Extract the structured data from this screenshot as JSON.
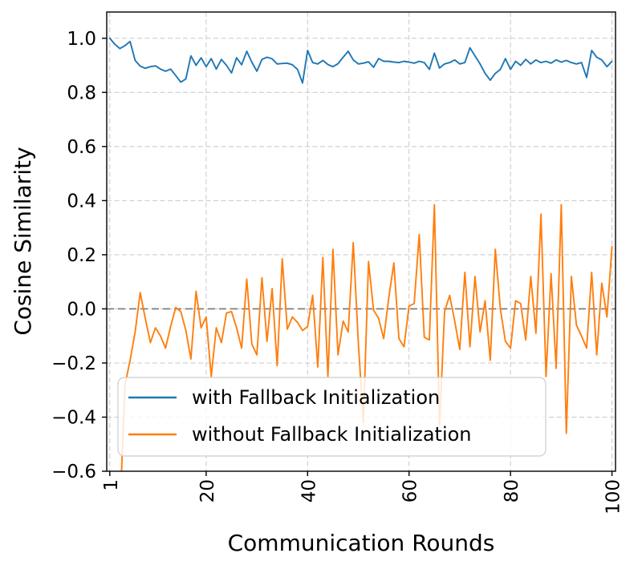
{
  "chart_data": {
    "type": "line",
    "title": "",
    "xlabel": "Communication Rounds",
    "ylabel": "Cosine Similarity",
    "xlim": [
      0.4,
      100.7
    ],
    "ylim": [
      -0.6,
      1.097
    ],
    "grid": true,
    "grid_color": "#c8c8c8",
    "text_color": "#000000",
    "x_ticks": [
      1,
      20,
      40,
      60,
      80,
      100
    ],
    "x_tick_labels": [
      "1",
      "20",
      "40",
      "60",
      "80",
      "100"
    ],
    "y_ticks": [
      1.0,
      0.8,
      0.6,
      0.4,
      0.2,
      0.0,
      -0.2,
      -0.4,
      -0.6
    ],
    "y_tick_labels": [
      "1.0",
      "0.8",
      "0.6",
      "0.4",
      "0.2",
      "0.0",
      "−0.2",
      "−0.4",
      "−0.6"
    ],
    "zero_line": {
      "y": 0.0,
      "color": "#7f7f7f",
      "style": "dashed"
    },
    "legend": {
      "position": "lower left"
    },
    "x": [
      1,
      2,
      3,
      4,
      5,
      6,
      7,
      8,
      9,
      10,
      11,
      12,
      13,
      14,
      15,
      16,
      17,
      18,
      19,
      20,
      21,
      22,
      23,
      24,
      25,
      26,
      27,
      28,
      29,
      30,
      31,
      32,
      33,
      34,
      35,
      36,
      37,
      38,
      39,
      40,
      41,
      42,
      43,
      44,
      45,
      46,
      47,
      48,
      49,
      50,
      51,
      52,
      53,
      54,
      55,
      56,
      57,
      58,
      59,
      60,
      61,
      62,
      63,
      64,
      65,
      66,
      67,
      68,
      69,
      70,
      71,
      72,
      73,
      74,
      75,
      76,
      77,
      78,
      79,
      80,
      81,
      82,
      83,
      84,
      85,
      86,
      87,
      88,
      89,
      90,
      91,
      92,
      93,
      94,
      95,
      96,
      97,
      98,
      99,
      100
    ],
    "series": [
      {
        "name": "with Fallback Initialization",
        "color": "#1f77b4",
        "values": [
          1.0,
          0.978,
          0.962,
          0.973,
          0.988,
          0.918,
          0.897,
          0.889,
          0.895,
          0.898,
          0.886,
          0.878,
          0.886,
          0.862,
          0.838,
          0.85,
          0.935,
          0.9,
          0.928,
          0.895,
          0.925,
          0.886,
          0.922,
          0.9,
          0.872,
          0.928,
          0.902,
          0.952,
          0.912,
          0.878,
          0.922,
          0.93,
          0.924,
          0.905,
          0.907,
          0.908,
          0.902,
          0.885,
          0.835,
          0.955,
          0.91,
          0.905,
          0.918,
          0.903,
          0.895,
          0.906,
          0.93,
          0.952,
          0.92,
          0.905,
          0.908,
          0.913,
          0.893,
          0.925,
          0.915,
          0.915,
          0.912,
          0.91,
          0.915,
          0.912,
          0.908,
          0.915,
          0.91,
          0.885,
          0.945,
          0.89,
          0.905,
          0.91,
          0.92,
          0.905,
          0.91,
          0.965,
          0.935,
          0.905,
          0.87,
          0.845,
          0.87,
          0.885,
          0.925,
          0.885,
          0.915,
          0.9,
          0.922,
          0.905,
          0.92,
          0.91,
          0.915,
          0.908,
          0.92,
          0.912,
          0.918,
          0.91,
          0.905,
          0.91,
          0.855,
          0.955,
          0.93,
          0.92,
          0.895,
          0.915
        ]
      },
      {
        "name": "without Fallback Initialization",
        "color": "#ff7f0e",
        "values": [
          -0.9,
          -0.82,
          -0.75,
          -0.28,
          -0.19,
          -0.085,
          0.06,
          -0.035,
          -0.125,
          -0.07,
          -0.1,
          -0.145,
          -0.065,
          0.005,
          -0.01,
          -0.08,
          -0.185,
          0.065,
          -0.07,
          -0.03,
          -0.25,
          -0.07,
          -0.125,
          -0.015,
          -0.01,
          -0.07,
          -0.145,
          0.11,
          -0.13,
          -0.17,
          0.115,
          -0.12,
          0.075,
          -0.21,
          0.185,
          -0.075,
          -0.03,
          -0.05,
          -0.08,
          -0.065,
          0.05,
          -0.215,
          0.19,
          -0.25,
          0.22,
          -0.17,
          -0.045,
          -0.085,
          0.245,
          -0.125,
          -0.42,
          0.175,
          -0.005,
          -0.035,
          -0.11,
          0.04,
          0.17,
          -0.11,
          -0.14,
          0.01,
          0.02,
          0.275,
          -0.105,
          -0.115,
          0.385,
          -0.43,
          -0.01,
          0.05,
          -0.045,
          -0.15,
          0.135,
          -0.14,
          0.12,
          -0.085,
          0.03,
          -0.19,
          0.22,
          0.0,
          -0.12,
          -0.145,
          0.03,
          0.02,
          -0.115,
          0.12,
          -0.09,
          0.35,
          -0.25,
          0.13,
          -0.22,
          0.385,
          -0.46,
          0.12,
          -0.06,
          -0.1,
          -0.145,
          0.135,
          -0.17,
          0.095,
          -0.03,
          0.23
        ]
      }
    ]
  }
}
